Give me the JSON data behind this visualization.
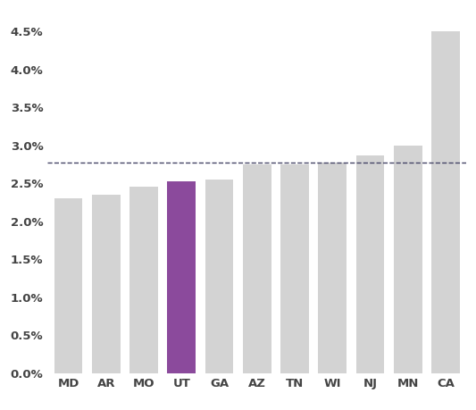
{
  "categories": [
    "MD",
    "AR",
    "MO",
    "UT",
    "GA",
    "AZ",
    "TN",
    "WI",
    "NJ",
    "MN",
    "CA"
  ],
  "values": [
    0.023,
    0.0235,
    0.0245,
    0.0253,
    0.0255,
    0.0275,
    0.0275,
    0.0277,
    0.0287,
    0.03,
    0.045
  ],
  "bar_colors": [
    "#d3d3d3",
    "#d3d3d3",
    "#d3d3d3",
    "#8b4a9c",
    "#d3d3d3",
    "#d3d3d3",
    "#d3d3d3",
    "#d3d3d3",
    "#d3d3d3",
    "#d3d3d3",
    "#d3d3d3"
  ],
  "dashed_line_y": 0.0277,
  "dashed_line_color": "#444466",
  "ylim": [
    0,
    0.0475
  ],
  "yticks": [
    0.0,
    0.005,
    0.01,
    0.015,
    0.02,
    0.025,
    0.03,
    0.035,
    0.04,
    0.045
  ],
  "background_color": "#ffffff",
  "bar_edge_color": "none",
  "tick_label_fontsize": 9.5,
  "x_label_fontsize": 9.5,
  "axis_label_color": "#444444",
  "bar_width": 0.75
}
